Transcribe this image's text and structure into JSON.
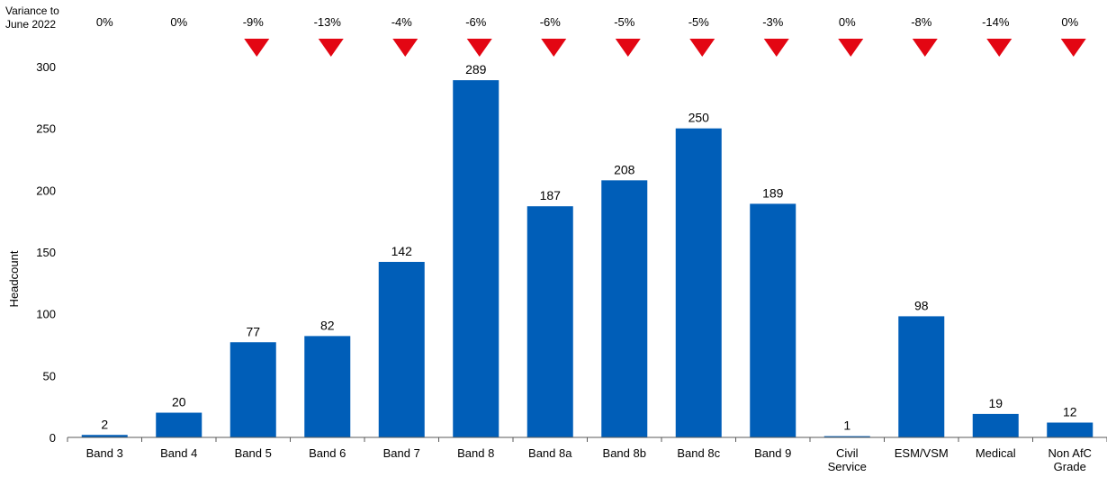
{
  "chart_data": {
    "type": "bar",
    "variance_header": [
      "Variance to",
      "June 2022"
    ],
    "ylabel": "Headcount",
    "ylim": [
      0,
      300
    ],
    "yticks": [
      "0",
      "50",
      "100",
      "150",
      "200",
      "250",
      "300"
    ],
    "categories": [
      [
        "Band 3"
      ],
      [
        "Band 4"
      ],
      [
        "Band 5"
      ],
      [
        "Band 6"
      ],
      [
        "Band 7"
      ],
      [
        "Band 8"
      ],
      [
        "Band 8a"
      ],
      [
        "Band 8b"
      ],
      [
        "Band 8c"
      ],
      [
        "Band 9"
      ],
      [
        "Civil",
        "Service"
      ],
      [
        "ESM/VSM"
      ],
      [
        "Medical"
      ],
      [
        "Non AfC",
        "Grade"
      ]
    ],
    "values": [
      2,
      20,
      77,
      82,
      142,
      289,
      187,
      208,
      250,
      189,
      1,
      98,
      19,
      12
    ],
    "value_labels": [
      "2",
      "20",
      "77",
      "82",
      "142",
      "289",
      "187",
      "208",
      "250",
      "189",
      "1",
      "98",
      "19",
      "12"
    ],
    "variance": [
      "0%",
      "0%",
      "-9%",
      "-13%",
      "-4%",
      "-6%",
      "-6%",
      "-5%",
      "-5%",
      "-3%",
      "0%",
      "-8%",
      "-14%",
      "0%"
    ],
    "variance_arrow": [
      false,
      false,
      true,
      true,
      true,
      true,
      true,
      true,
      true,
      true,
      true,
      true,
      true,
      true
    ],
    "colors": {
      "bar": "#005EB8",
      "arrow": "#E30613",
      "axis": "#595959"
    }
  }
}
